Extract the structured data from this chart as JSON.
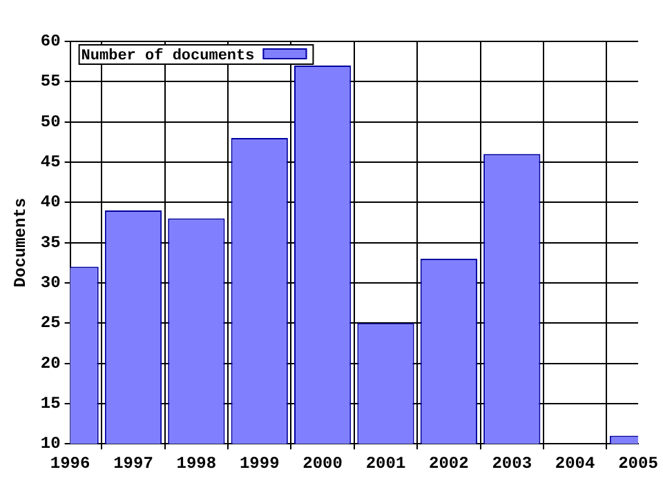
{
  "chart_data": {
    "type": "bar",
    "ylabel": "Documents",
    "x": [
      1996,
      1997,
      1998,
      1999,
      2000,
      2001,
      2002,
      2003,
      2004,
      2005
    ],
    "series": [
      {
        "name": "Number of documents",
        "color": "#8080ff",
        "values": [
          32,
          39,
          38,
          48,
          57,
          25,
          33,
          46,
          null,
          11
        ]
      }
    ],
    "xlim": [
      1996,
      2005
    ],
    "xticks": [
      1996,
      1997,
      1998,
      1999,
      2000,
      2001,
      2002,
      2003,
      2004,
      2005
    ],
    "ylim": [
      10,
      60
    ],
    "yticks": [
      10,
      15,
      20,
      25,
      30,
      35,
      40,
      45,
      50,
      55,
      60
    ],
    "grid": true,
    "legend": "top left"
  }
}
